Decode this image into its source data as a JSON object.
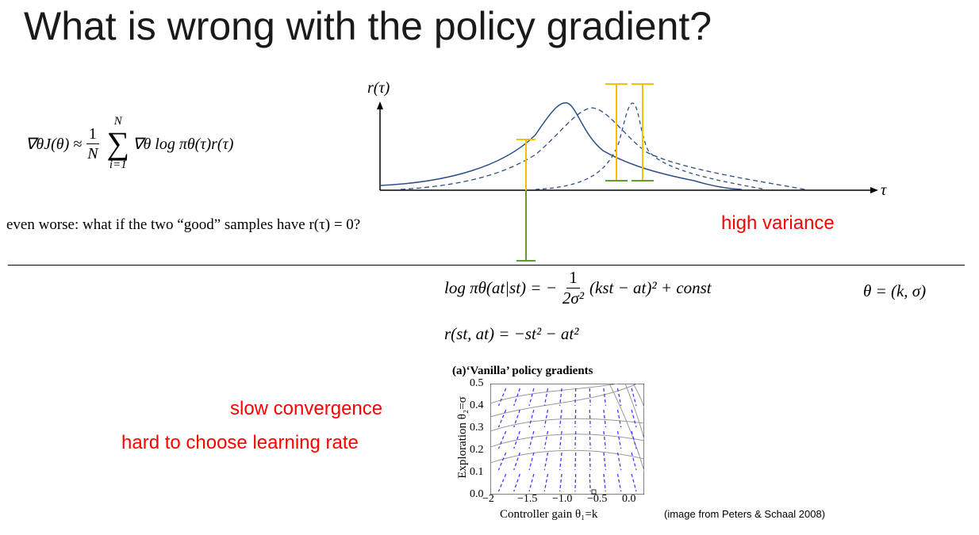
{
  "slide": {
    "title": "What is wrong with the policy gradient?",
    "worse_text": "even worse: what if the two “good” samples have r(τ) = 0?",
    "high_variance": "high variance",
    "slow_convergence": "slow convergence",
    "hard_lr": "hard to choose learning rate",
    "credit": "(image from Peters & Schaal 2008)"
  },
  "gradient_eq": {
    "lhs": "∇θJ(θ) ≈",
    "frac_num": "1",
    "frac_den": "N",
    "sum_top": "N",
    "sum_bottom": "i=1",
    "rhs": "∇θ log πθ(τ)r(τ)"
  },
  "sketch": {
    "y_label": "r(τ)",
    "x_label": "τ"
  },
  "policy_eq": {
    "lhs": "log πθ(at|st) = −",
    "frac_num": "1",
    "frac_den": "2σ²",
    "rhs": "(kst − at)² + const",
    "theta": "θ = (k, σ)"
  },
  "reward_eq": {
    "text": "r(st, at) = −st² − at²"
  },
  "figure": {
    "title": "(a)‘Vanilla’ policy gradients",
    "y_label": "Exploration θ₂=σ",
    "x_label": "Controller gain θ₁=k",
    "y_ticks": [
      "0.5",
      "0.4",
      "0.3",
      "0.2",
      "0.1",
      "0.0"
    ],
    "x_ticks": [
      "−2",
      "−1.5",
      "−1.0",
      "−0.5",
      "0.0"
    ]
  },
  "colors": {
    "curve": "#2b4f86",
    "sample_pos": "#f5c000",
    "sample_neg": "#5aa02c",
    "emph": "#ff0000",
    "arrow": "#3b3bff"
  }
}
